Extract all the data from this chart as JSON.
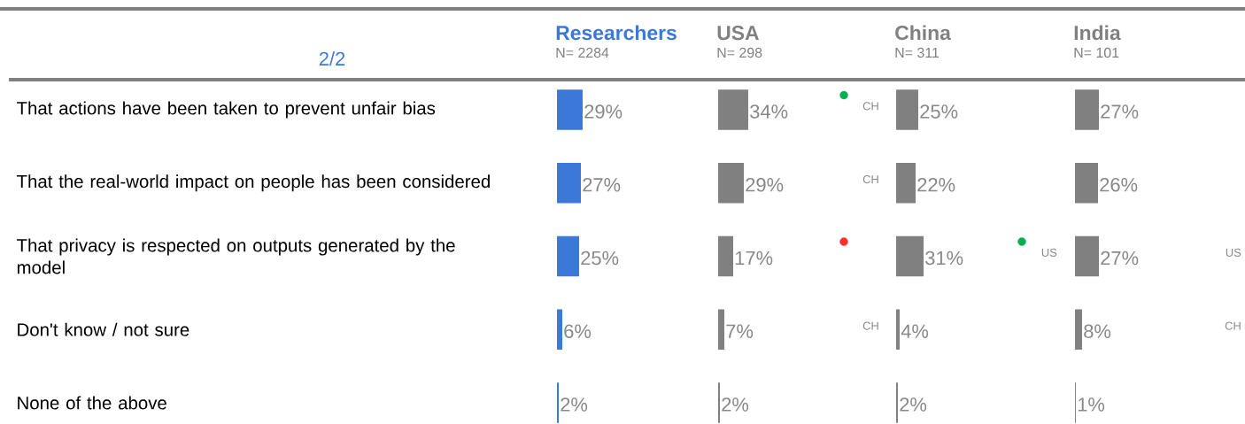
{
  "chart_data": [
    {
      "type": "bar",
      "orientation": "horizontal",
      "title": "Researchers",
      "subtitle": "N= 2284",
      "annotations": [
        "2/2"
      ],
      "tick_labels": "y",
      "categories": [
        "That actions have been taken to prevent unfair bias",
        "That the real-world impact on people has been considered",
        "That privacy is respected on outputs generated by the model",
        "Don't know / not sure",
        "None of the above"
      ],
      "series": [
        {
          "color": "#3c78d8",
          "values": [
            29,
            27,
            25,
            6,
            2
          ],
          "value_labels": [
            "29%",
            "27%",
            "25%",
            "6%",
            "2%"
          ]
        }
      ]
    },
    {
      "type": "bar",
      "orientation": "horizontal",
      "title": "USA",
      "subtitle": "N= 298",
      "tick_labels": false,
      "categories": [
        null,
        null,
        null,
        null,
        null
      ],
      "annotations": [
        "CH",
        "CH",
        "CH"
      ],
      "series": [
        {
          "color": "#808080",
          "values": [
            34,
            29,
            17,
            7,
            2
          ],
          "value_labels": [
            "34%",
            "29%",
            "17%",
            "7%",
            "2%"
          ]
        },
        {
          "type": "scatter",
          "marker": "circle",
          "colors": [
            "#00b050",
            null,
            "#ff3030",
            null,
            null
          ],
          "values": [
            142,
            null,
            142,
            null,
            null
          ]
        }
      ]
    },
    {
      "type": "bar",
      "orientation": "horizontal",
      "title": "China",
      "subtitle": "N= 311",
      "tick_labels": false,
      "categories": [
        null,
        null,
        null,
        null,
        null
      ],
      "series": [
        {
          "color": "#808080",
          "values": [
            25,
            22,
            31,
            4,
            2
          ],
          "value_labels": [
            "25%",
            "22%",
            "31%",
            "4%",
            "2%"
          ]
        },
        {
          "type": "scatter",
          "marker": "circle",
          "colors": [
            null,
            null,
            "#00b050",
            null,
            null
          ],
          "values": [
            null,
            null,
            142,
            null,
            null
          ]
        }
      ],
      "annotations": [
        "US"
      ]
    },
    {
      "type": "bar",
      "orientation": "horizontal",
      "title": "India",
      "subtitle": "N= 101",
      "tick_labels": false,
      "categories": [
        null,
        null,
        null,
        null,
        null
      ],
      "annotations": [
        "US",
        "CH"
      ],
      "series": [
        {
          "color": "#808080",
          "values": [
            27,
            26,
            27,
            8,
            1
          ],
          "value_labels": [
            "27%",
            "26%",
            "27%",
            "8%",
            "1%"
          ]
        }
      ]
    }
  ]
}
